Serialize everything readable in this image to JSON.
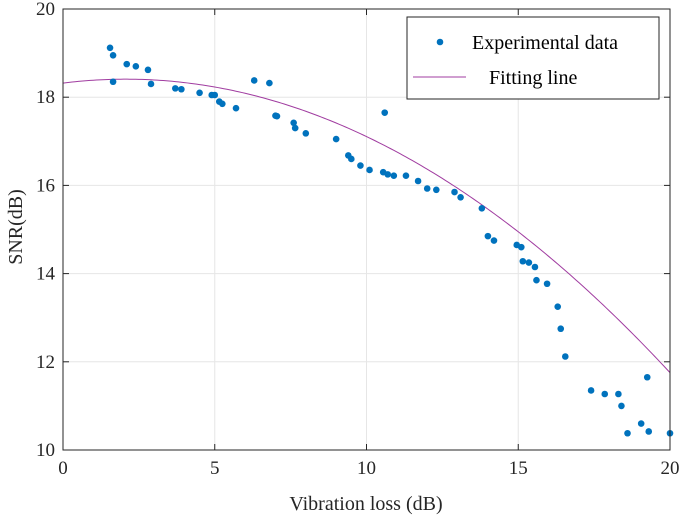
{
  "chart_data": {
    "type": "scatter",
    "xlabel": "Vibration loss (dB)",
    "ylabel": "SNR(dB)",
    "xlim": [
      0,
      20
    ],
    "ylim": [
      10,
      20
    ],
    "xticks": [
      0,
      5,
      10,
      15,
      20
    ],
    "yticks": [
      10,
      12,
      14,
      16,
      18,
      20
    ],
    "grid": true,
    "legend_position": "top-right",
    "colors": {
      "points": "#0072BD",
      "fit": "#A03CA0",
      "grid": "#E6E6E6",
      "axis": "#262626"
    },
    "series": [
      {
        "name": "Experimental data",
        "kind": "scatter",
        "points": [
          [
            1.55,
            19.12
          ],
          [
            1.65,
            18.95
          ],
          [
            1.65,
            18.35
          ],
          [
            2.1,
            18.75
          ],
          [
            2.4,
            18.7
          ],
          [
            2.8,
            18.62
          ],
          [
            2.9,
            18.3
          ],
          [
            3.7,
            18.2
          ],
          [
            3.9,
            18.18
          ],
          [
            4.5,
            18.1
          ],
          [
            4.9,
            18.05
          ],
          [
            5.0,
            18.05
          ],
          [
            5.15,
            17.9
          ],
          [
            5.25,
            17.85
          ],
          [
            5.7,
            17.75
          ],
          [
            6.3,
            18.38
          ],
          [
            6.8,
            18.32
          ],
          [
            7.0,
            17.58
          ],
          [
            7.05,
            17.57
          ],
          [
            7.6,
            17.42
          ],
          [
            7.65,
            17.3
          ],
          [
            8.0,
            17.18
          ],
          [
            9.0,
            17.05
          ],
          [
            9.4,
            16.68
          ],
          [
            9.5,
            16.6
          ],
          [
            9.8,
            16.45
          ],
          [
            10.1,
            16.35
          ],
          [
            10.55,
            16.3
          ],
          [
            10.7,
            16.25
          ],
          [
            10.9,
            16.22
          ],
          [
            10.6,
            17.65
          ],
          [
            11.3,
            16.22
          ],
          [
            11.7,
            16.1
          ],
          [
            12.0,
            15.93
          ],
          [
            12.3,
            15.9
          ],
          [
            12.9,
            15.85
          ],
          [
            13.1,
            15.73
          ],
          [
            13.8,
            15.48
          ],
          [
            14.0,
            14.85
          ],
          [
            14.2,
            14.75
          ],
          [
            14.95,
            14.65
          ],
          [
            15.1,
            14.6
          ],
          [
            15.15,
            14.28
          ],
          [
            15.35,
            14.25
          ],
          [
            15.55,
            14.15
          ],
          [
            15.6,
            13.85
          ],
          [
            15.95,
            13.77
          ],
          [
            16.3,
            13.25
          ],
          [
            16.4,
            12.75
          ],
          [
            16.55,
            12.12
          ],
          [
            17.4,
            11.35
          ],
          [
            17.85,
            11.27
          ],
          [
            18.3,
            11.27
          ],
          [
            18.4,
            11.0
          ],
          [
            18.6,
            10.38
          ],
          [
            19.05,
            10.6
          ],
          [
            19.25,
            11.65
          ],
          [
            19.3,
            10.42
          ],
          [
            20.0,
            10.38
          ]
        ]
      },
      {
        "name": "Fitting line",
        "kind": "line",
        "model": "quadratic",
        "coefficients": {
          "a": -0.0207,
          "b": 0.0857,
          "c": 18.32
        }
      }
    ]
  }
}
